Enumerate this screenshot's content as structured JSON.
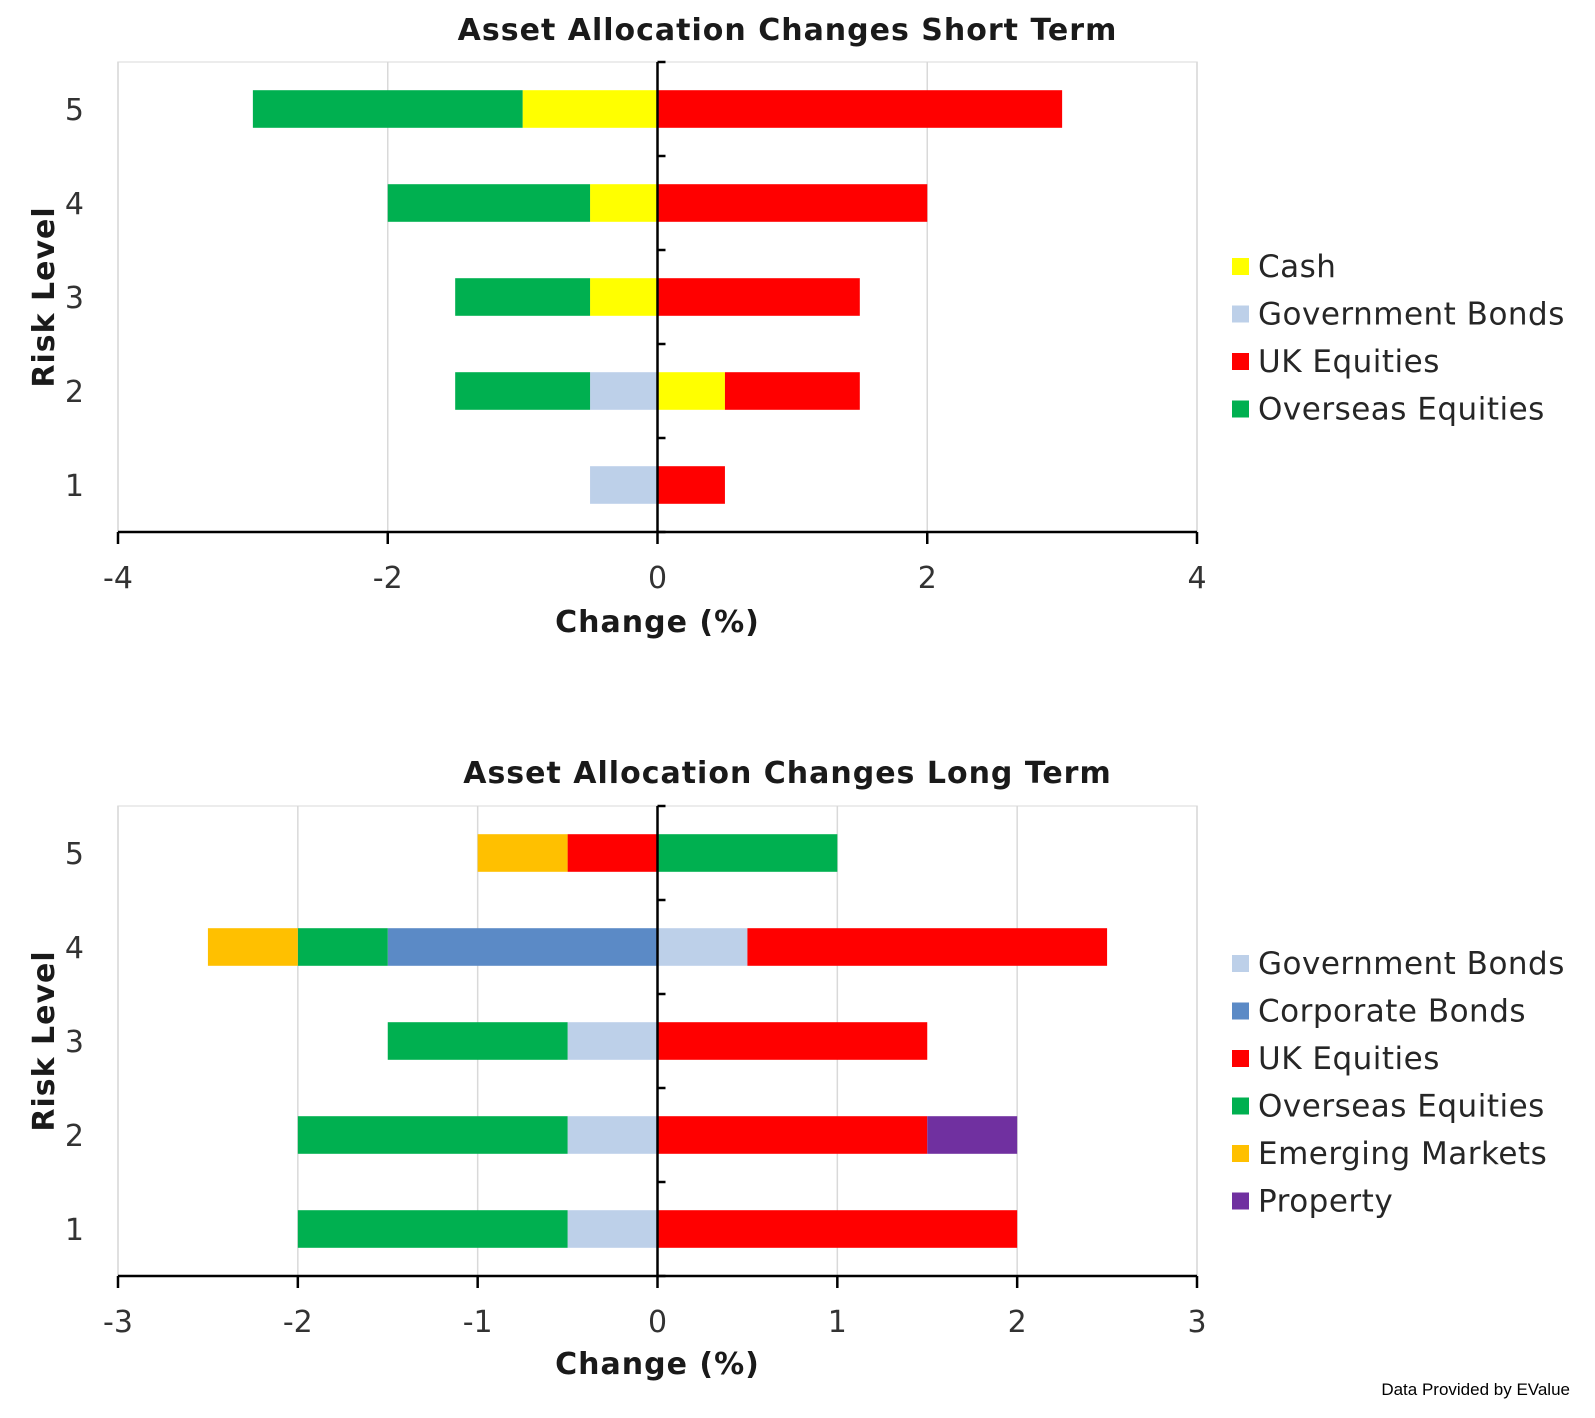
{
  "source_note": "Data Provided by EValue",
  "chart_data": [
    {
      "type": "bar",
      "orientation": "horizontal",
      "stacked": true,
      "diverging": true,
      "title": "Asset Allocation Changes Short Term",
      "xlabel": "Change (%)",
      "ylabel": "Risk Level",
      "xlim": [
        -4,
        4
      ],
      "x_ticks": [
        "-4",
        "-2",
        "0",
        "2",
        "4"
      ],
      "x_tick_values": [
        -4,
        -2,
        0,
        2,
        4
      ],
      "categories": [
        "1",
        "2",
        "3",
        "4",
        "5"
      ],
      "grid": true,
      "legend_position": "right",
      "series": [
        {
          "name": "Cash",
          "color": "#ffff00",
          "values": [
            0,
            0.5,
            -0.5,
            -0.5,
            -1
          ]
        },
        {
          "name": "Government Bonds",
          "color": "#bdd0e9",
          "values": [
            -0.5,
            -0.5,
            0,
            0,
            0
          ]
        },
        {
          "name": "UK Equities",
          "color": "#ff0000",
          "values": [
            0.5,
            1,
            1.5,
            2,
            3
          ]
        },
        {
          "name": "Overseas Equities",
          "color": "#00b050",
          "values": [
            0,
            -1,
            -1,
            -1.5,
            -2
          ]
        }
      ]
    },
    {
      "type": "bar",
      "orientation": "horizontal",
      "stacked": true,
      "diverging": true,
      "title": "Asset Allocation Changes Long Term",
      "xlabel": "Change (%)",
      "ylabel": "Risk Level",
      "xlim": [
        -3,
        3
      ],
      "x_ticks": [
        "-3",
        "-2",
        "-1",
        "0",
        "1",
        "2",
        "3"
      ],
      "x_tick_values": [
        -3,
        -2,
        -1,
        0,
        1,
        2,
        3
      ],
      "categories": [
        "1",
        "2",
        "3",
        "4",
        "5"
      ],
      "grid": true,
      "legend_position": "right",
      "series": [
        {
          "name": "Government Bonds",
          "color": "#bdd0e9",
          "values": [
            -0.5,
            -0.5,
            -0.5,
            0.5,
            0
          ]
        },
        {
          "name": "Corporate Bonds",
          "color": "#5b8ac6",
          "values": [
            0,
            0,
            0,
            -1.5,
            0
          ]
        },
        {
          "name": "UK Equities",
          "color": "#ff0000",
          "values": [
            2,
            1.5,
            1.5,
            2,
            -0.5
          ]
        },
        {
          "name": "Overseas Equities",
          "color": "#00b050",
          "values": [
            -1.5,
            -1.5,
            -1,
            -0.5,
            1
          ]
        },
        {
          "name": "Emerging Markets",
          "color": "#ffc000",
          "values": [
            0,
            0,
            0,
            -0.5,
            -0.5
          ]
        },
        {
          "name": "Property",
          "color": "#7030a0",
          "values": [
            0,
            0.5,
            0,
            0,
            0
          ]
        }
      ]
    }
  ]
}
